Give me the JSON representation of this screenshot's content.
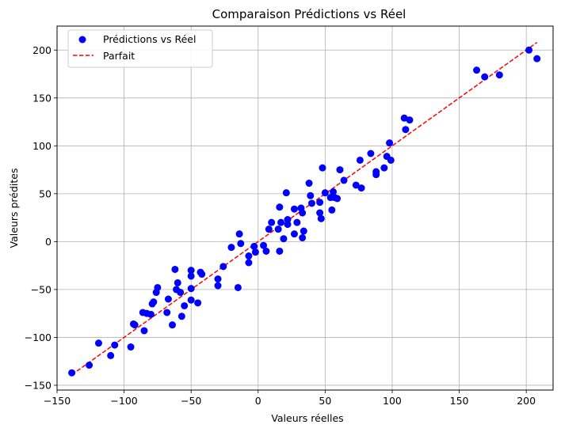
{
  "chart_data": {
    "type": "scatter",
    "title": "Comparaison Prédictions vs Réel",
    "xlabel": "Valeurs réelles",
    "ylabel": "Valeurs prédites",
    "xlim": [
      -150,
      220
    ],
    "ylim": [
      -155,
      225
    ],
    "xticks": [
      -150,
      -100,
      -50,
      0,
      50,
      100,
      150,
      200
    ],
    "yticks": [
      -150,
      -100,
      -50,
      0,
      50,
      100,
      150,
      200
    ],
    "xtick_labels": [
      "−150",
      "−100",
      "−50",
      "0",
      "50",
      "100",
      "150",
      "200"
    ],
    "ytick_labels": [
      "−150",
      "−100",
      "−50",
      "0",
      "50",
      "100",
      "150",
      "200"
    ],
    "grid": true,
    "legend_position": "top-left",
    "series": [
      {
        "name": "Prédictions vs Réel",
        "kind": "scatter",
        "color": "#0000ff",
        "points": [
          [
            -139,
            -137
          ],
          [
            -126,
            -129
          ],
          [
            -119,
            -106
          ],
          [
            -110,
            -119
          ],
          [
            -107,
            -108
          ],
          [
            -95,
            -110
          ],
          [
            -93,
            -86
          ],
          [
            -92,
            -87
          ],
          [
            -86,
            -74
          ],
          [
            -85,
            -93
          ],
          [
            -83,
            -75
          ],
          [
            -80,
            -76
          ],
          [
            -79,
            -65
          ],
          [
            -78,
            -63
          ],
          [
            -76,
            -53
          ],
          [
            -75,
            -48
          ],
          [
            -68,
            -74
          ],
          [
            -67,
            -60
          ],
          [
            -64,
            -87
          ],
          [
            -62,
            -29
          ],
          [
            -61,
            -50
          ],
          [
            -60,
            -43
          ],
          [
            -58,
            -53
          ],
          [
            -57,
            -78
          ],
          [
            -55,
            -67
          ],
          [
            -50,
            -61
          ],
          [
            -50,
            -30
          ],
          [
            -50,
            -36
          ],
          [
            -50,
            -49
          ],
          [
            -45,
            -64
          ],
          [
            -43,
            -32
          ],
          [
            -42,
            -34
          ],
          [
            -30,
            -39
          ],
          [
            -30,
            -46
          ],
          [
            -26,
            -26
          ],
          [
            -20,
            -6
          ],
          [
            -15,
            -48
          ],
          [
            -14,
            8
          ],
          [
            -13,
            -2
          ],
          [
            -7,
            -22
          ],
          [
            -7,
            -15
          ],
          [
            -3,
            -5
          ],
          [
            -2,
            -11
          ],
          [
            4,
            -4
          ],
          [
            6,
            -10
          ],
          [
            8,
            13
          ],
          [
            10,
            20
          ],
          [
            15,
            13
          ],
          [
            16,
            -10
          ],
          [
            16,
            36
          ],
          [
            17,
            20
          ],
          [
            19,
            3
          ],
          [
            21,
            51
          ],
          [
            22,
            23
          ],
          [
            22,
            18
          ],
          [
            27,
            8
          ],
          [
            27,
            34
          ],
          [
            29,
            20
          ],
          [
            32,
            35
          ],
          [
            33,
            4
          ],
          [
            33,
            30
          ],
          [
            34,
            11
          ],
          [
            38,
            61
          ],
          [
            39,
            48
          ],
          [
            40,
            40
          ],
          [
            46,
            41
          ],
          [
            46,
            30
          ],
          [
            47,
            24
          ],
          [
            48,
            77
          ],
          [
            50,
            51
          ],
          [
            54,
            46
          ],
          [
            55,
            33
          ],
          [
            56,
            52
          ],
          [
            57,
            46
          ],
          [
            59,
            45
          ],
          [
            61,
            75
          ],
          [
            64,
            64
          ],
          [
            73,
            59
          ],
          [
            77,
            56
          ],
          [
            76,
            85
          ],
          [
            84,
            92
          ],
          [
            88,
            73
          ],
          [
            88,
            70
          ],
          [
            94,
            77
          ],
          [
            96,
            89
          ],
          [
            98,
            103
          ],
          [
            99,
            85
          ],
          [
            109,
            129
          ],
          [
            110,
            117
          ],
          [
            113,
            127
          ],
          [
            163,
            179
          ],
          [
            169,
            172
          ],
          [
            180,
            174
          ],
          [
            202,
            200
          ],
          [
            208,
            191
          ]
        ]
      },
      {
        "name": "Parfait",
        "kind": "line",
        "style": "dashed",
        "color": "#ff0000",
        "points": [
          [
            -139,
            -139
          ],
          [
            208,
            208
          ]
        ]
      }
    ]
  }
}
